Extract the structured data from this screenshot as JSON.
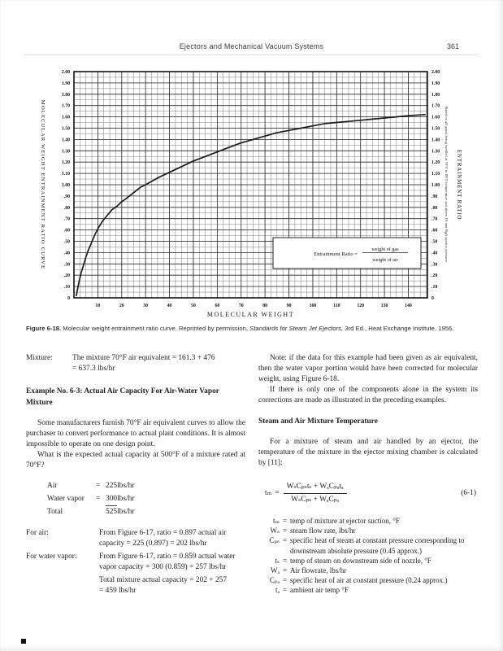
{
  "header": {
    "title": "Ejectors and Mechanical Vacuum Systems",
    "page_number": "361"
  },
  "chart_data": {
    "type": "line",
    "xlabel": "MOLECULAR WEIGHT",
    "ylabel_left": "MOLECULAR WEIGHT ENTRAINMENT RATIO CURVE",
    "ylabel_right": "ENTRAINMENT RATIO",
    "right_note": "Based on all gases being handled at 70°F to 80°F temperature and above 10 mm HgA suction pressure.",
    "xlim": [
      0,
      148
    ],
    "ylim": [
      0,
      2.0
    ],
    "x_ticks": [
      10,
      20,
      30,
      40,
      50,
      60,
      70,
      80,
      90,
      100,
      110,
      120,
      130,
      140
    ],
    "y_tick_step": 0.1,
    "grid": {
      "x_minor": 2.5,
      "y_minor": 0.05,
      "x_major": 10,
      "y_major": 0.1
    },
    "inset": {
      "label": "Entrainment Ratio =",
      "numerator": "weight of gas",
      "denominator": "weight of air"
    },
    "points": [
      [
        1,
        0.02
      ],
      [
        2,
        0.13
      ],
      [
        3,
        0.22
      ],
      [
        4,
        0.29
      ],
      [
        5,
        0.36
      ],
      [
        6,
        0.42
      ],
      [
        7,
        0.47
      ],
      [
        8,
        0.52
      ],
      [
        9,
        0.57
      ],
      [
        10,
        0.61
      ],
      [
        12,
        0.68
      ],
      [
        14,
        0.73
      ],
      [
        16,
        0.78
      ],
      [
        18,
        0.81
      ],
      [
        20,
        0.85
      ],
      [
        22,
        0.88
      ],
      [
        25,
        0.93
      ],
      [
        28,
        0.98
      ],
      [
        30,
        1.0
      ],
      [
        35,
        1.06
      ],
      [
        40,
        1.11
      ],
      [
        45,
        1.16
      ],
      [
        50,
        1.21
      ],
      [
        55,
        1.25
      ],
      [
        60,
        1.29
      ],
      [
        65,
        1.33
      ],
      [
        70,
        1.37
      ],
      [
        75,
        1.4
      ],
      [
        80,
        1.43
      ],
      [
        85,
        1.46
      ],
      [
        90,
        1.48
      ],
      [
        95,
        1.5
      ],
      [
        100,
        1.52
      ],
      [
        105,
        1.54
      ],
      [
        110,
        1.55
      ],
      [
        115,
        1.56
      ],
      [
        120,
        1.57
      ],
      [
        125,
        1.58
      ],
      [
        130,
        1.59
      ],
      [
        135,
        1.6
      ],
      [
        140,
        1.61
      ],
      [
        147,
        1.62
      ]
    ]
  },
  "caption": {
    "figure_label": "Figure 6-18.",
    "text": " Molecular weight entrainment ratio curve. Reprinted by permission, ",
    "source_italic": "Standards for Steam Jet Ejectors,",
    "tail": " 3rd Ed., Heat Exchange Institute, 1956."
  },
  "left_column": {
    "mixture_label": "Mixture:",
    "mixture_line1": "The mixture 70°F air equivalent = 161.3 + 476",
    "mixture_line2": "= 637.3 lbs/hr",
    "example_heading": "Example No. 6-3: Actual Air Capacity For Air-Water Vapor Mixture",
    "para1": "Some manufacturers furnish 70°F air equivalent curves to allow the purchaser to convert performance to actual plant conditions. It is almost impossible to operate on one design point.",
    "para2": "What is the expected actual capacity at 500°F of a mixture rated at 70°F?",
    "rates": [
      {
        "label": "Air",
        "eq": "=",
        "num": "225",
        "unit": " lbs/hr",
        "rule": false
      },
      {
        "label": "Water vapor",
        "eq": "=",
        "num": "300",
        "unit": " lbs/hr",
        "rule": true
      },
      {
        "label": "Total",
        "eq": "",
        "num": "525",
        "unit": " lbs/hr",
        "rule": false
      }
    ],
    "calcs": [
      {
        "label": "For air:",
        "lines": [
          "From Figure 6-17, ratio = 0.897 actual air",
          "capacity = 225 (0.897) = 202 lbs/hr"
        ]
      },
      {
        "label": "For water vapor:",
        "lines": [
          "From Figure 6-17, ratio = 0.859 actual water",
          "vapor capacity = 300 (0.859) = 257 lbs/hr"
        ]
      },
      {
        "label": "",
        "lines": [
          "Total mixture actual capacity = 202 + 257",
          "= 459 lbs/hr"
        ]
      }
    ]
  },
  "right_column": {
    "note_pre": "Note: if the data for this example had been given as ",
    "note_italic": "air equivalent",
    "note_post": ", then the water vapor portion would have been corrected for molecular weight, using Figure 6-18.",
    "para2": "If there is only one of the components alone in the system its corrections are made as illustrated in the preceding examples.",
    "section_heading": "Steam and Air Mixture Temperature",
    "para3": "For a mixture of steam and air handled by an ejector, the temperature of the mixture in the ejector mixing chamber is calculated by [11]:",
    "equation": {
      "lhs": "tₘ",
      "equals": "=",
      "numerator": "WₛCₚₛtₛ + WₐCₚₐtₐ",
      "denominator": "WₛCₚₛ + WₐCₚₐ",
      "number": "(6-1)"
    },
    "definitions": [
      {
        "term": "tₘ",
        "def": "temp of mixture at ejector suction, °F"
      },
      {
        "term": "Wₛ",
        "def": "steam flow rate, lbs/hr"
      },
      {
        "term": "Cₚₛ",
        "def": "specific heat of steam at constant pressure corresponding to downstream absolute pressure (0.45 approx.)"
      },
      {
        "term": "tₛ",
        "def": "temp of steam on downstream side of nozzle, °F"
      },
      {
        "term": "Wₐ",
        "def": "Air flowrate, lbs/hr"
      },
      {
        "term": "Cₚₐ",
        "def": "specific heat of air at constant pressure (0.24 approx.)"
      },
      {
        "term": "tₐ",
        "def": "ambient air temp °F"
      }
    ]
  }
}
